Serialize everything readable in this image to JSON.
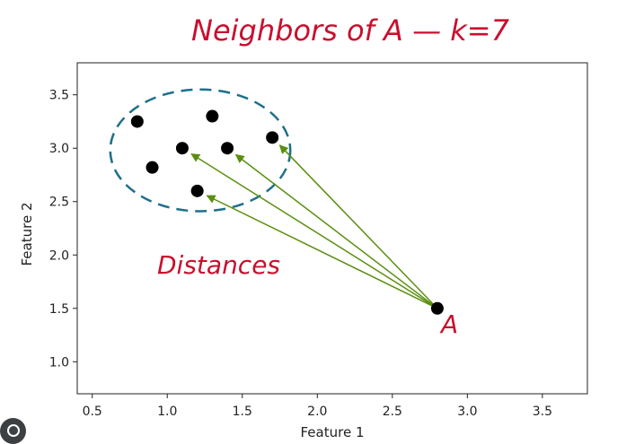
{
  "chart_data": {
    "type": "scatter",
    "title": "Neighbors of A — k=7",
    "xlabel": "Feature 1",
    "ylabel": "Feature 2",
    "xlim": [
      0.4,
      3.8
    ],
    "ylim": [
      0.7,
      3.8
    ],
    "xticks": [
      0.5,
      1.0,
      1.5,
      2.0,
      2.5,
      3.0,
      3.5
    ],
    "yticks": [
      1.0,
      1.5,
      2.0,
      2.5,
      3.0,
      3.5
    ],
    "grid": false,
    "points": [
      {
        "x": 0.8,
        "y": 3.25
      },
      {
        "x": 1.3,
        "y": 3.3
      },
      {
        "x": 1.1,
        "y": 3.0
      },
      {
        "x": 1.4,
        "y": 3.0
      },
      {
        "x": 1.7,
        "y": 3.1
      },
      {
        "x": 0.9,
        "y": 2.82
      },
      {
        "x": 1.2,
        "y": 2.6
      }
    ],
    "query_point": {
      "x": 2.8,
      "y": 1.5,
      "label": "A"
    },
    "neighborhood": {
      "center_x": 1.22,
      "center_y": 2.98,
      "radius_x": 0.6,
      "radius_y": 0.57
    },
    "distance_arrows": [
      {
        "to_x": 1.1,
        "to_y": 3.0
      },
      {
        "to_x": 1.4,
        "to_y": 3.0
      },
      {
        "to_x": 1.7,
        "to_y": 3.1
      },
      {
        "to_x": 1.2,
        "to_y": 2.6
      }
    ],
    "annotations": [
      {
        "text": "Distances"
      }
    ],
    "colors": {
      "points": "#000000",
      "arrows": "#5a8f0f",
      "circle": "#1f6f8b",
      "annotation": "#c8102e"
    }
  }
}
